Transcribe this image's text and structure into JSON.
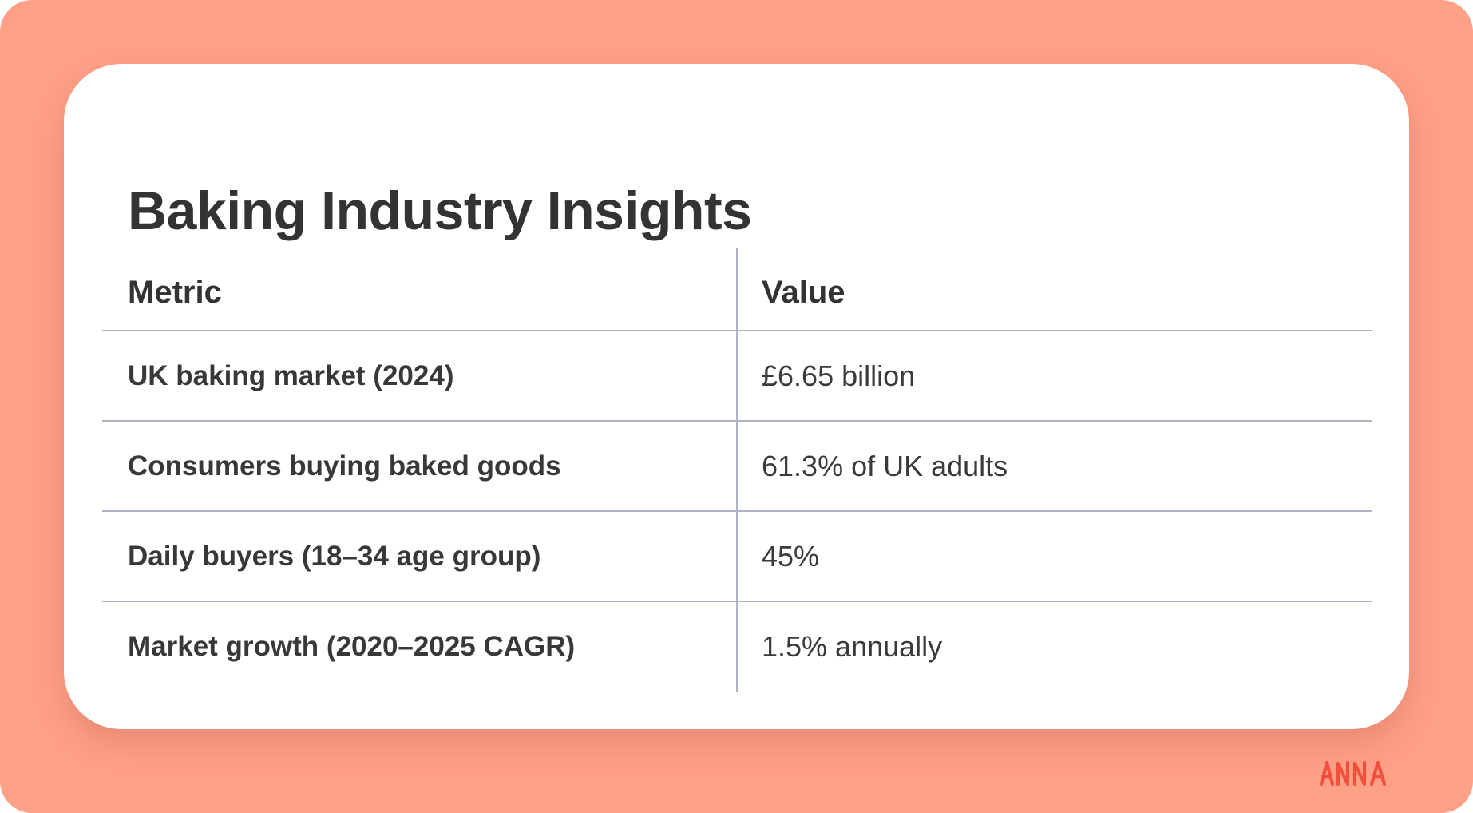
{
  "card": {
    "title": "Baking Industry Insights"
  },
  "table": {
    "headers": [
      "Metric",
      "Value"
    ],
    "rows": [
      {
        "metric": "UK baking market (2024)",
        "value": "£6.65 billion"
      },
      {
        "metric": "Consumers buying baked goods",
        "value": "61.3% of UK adults"
      },
      {
        "metric": "Daily buyers (18–34 age group)",
        "value": "45%"
      },
      {
        "metric": "Market growth (2020–2025 CAGR)",
        "value": "1.5% annually"
      }
    ]
  },
  "logo": {
    "text": "ANNA",
    "color": "#F2503C"
  },
  "colors": {
    "background": "#FFA087",
    "card": "#FFFFFF",
    "text": "#333333",
    "rule": "#AEB4C4"
  }
}
